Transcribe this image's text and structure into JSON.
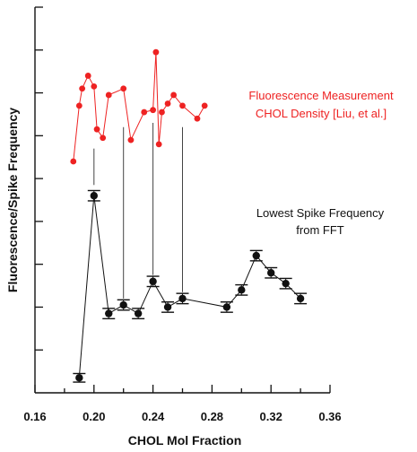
{
  "chart_data": {
    "type": "scatter",
    "xlabel": "CHOL Mol Fraction",
    "ylabel": "Fluorescence/Spike Frequency",
    "xlim": [
      0.16,
      0.36
    ],
    "ylim": [
      0,
      9
    ],
    "x_ticks": [
      "0.16",
      "0.20",
      "0.24",
      "0.28",
      "0.32",
      "0.36"
    ],
    "y_tick_count": 9,
    "y_tick_labels_shown": false,
    "grid": false,
    "series": [
      {
        "color": "#ee2222",
        "marker": "circle",
        "error_bars": false,
        "x": [
          0.186,
          0.19,
          0.192,
          0.196,
          0.2,
          0.202,
          0.206,
          0.21,
          0.22,
          0.225,
          0.234,
          0.24,
          0.242,
          0.244,
          0.246,
          0.25,
          0.254,
          0.26,
          0.27,
          0.275
        ],
        "y": [
          5.4,
          6.7,
          7.1,
          7.4,
          7.15,
          6.15,
          5.95,
          6.95,
          7.1,
          5.9,
          6.55,
          6.6,
          7.95,
          5.8,
          6.55,
          6.75,
          6.95,
          6.7,
          6.4,
          6.7
        ]
      },
      {
        "color": "#111111",
        "marker": "circle",
        "error_bars": true,
        "x": [
          0.19,
          0.2,
          0.21,
          0.22,
          0.23,
          0.24,
          0.25,
          0.26,
          0.29,
          0.3,
          0.31,
          0.32,
          0.33,
          0.34
        ],
        "y": [
          0.35,
          4.6,
          1.85,
          2.05,
          1.85,
          2.6,
          2.0,
          2.2,
          2.0,
          2.4,
          3.2,
          2.8,
          2.55,
          2.2
        ],
        "error": [
          0.1,
          0.12,
          0.12,
          0.12,
          0.12,
          0.12,
          0.12,
          0.12,
          0.12,
          0.12,
          0.12,
          0.12,
          0.12,
          0.12
        ]
      }
    ],
    "guide_lines": [
      {
        "x": 0.2,
        "y_top": 5.7,
        "y_bottom": 4.85
      },
      {
        "x": 0.22,
        "y_top": 6.2,
        "y_bottom": 2.2
      },
      {
        "x": 0.24,
        "y_top": 6.3,
        "y_bottom": 2.75
      },
      {
        "x": 0.26,
        "y_top": 6.2,
        "y_bottom": 2.35
      }
    ],
    "annotations": [
      {
        "lines": [
          "Fluorescence Measurement",
          "CHOL Density [Liu, et al.]"
        ],
        "color": "#ee2222"
      },
      {
        "lines": [
          "Lowest Spike Frequency",
          "from FFT"
        ],
        "color": "#111111"
      }
    ]
  }
}
